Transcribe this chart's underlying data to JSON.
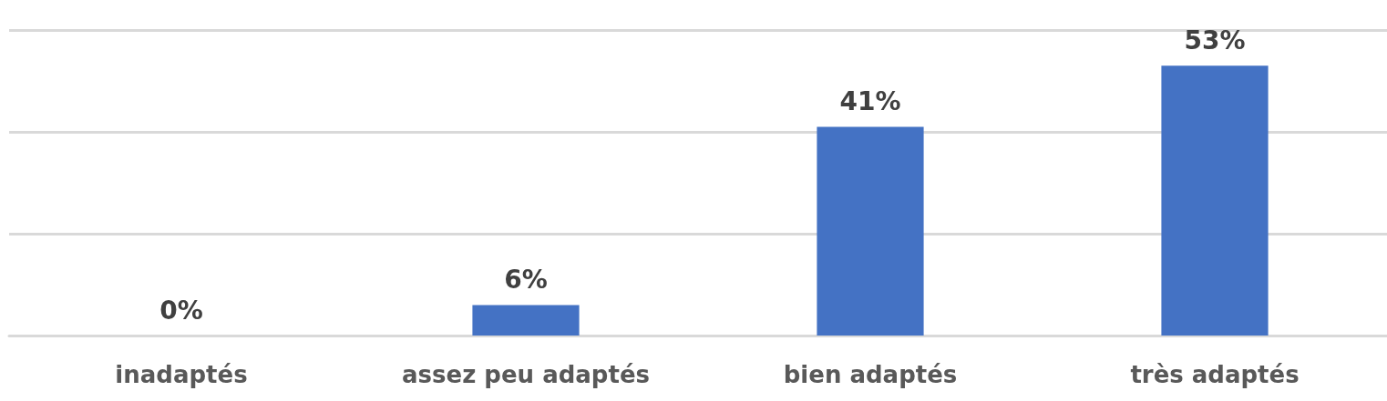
{
  "chart_data": {
    "type": "bar",
    "categories": [
      "inadaptés",
      "assez peu adaptés",
      "bien adaptés",
      "très adaptés"
    ],
    "values": [
      0,
      6,
      41,
      53
    ],
    "value_labels": [
      "0%",
      "6%",
      "41%",
      "53%"
    ],
    "color": "#4472c4",
    "ylim": [
      0,
      60
    ],
    "yticks": [
      {
        "value": 0,
        "label": null
      },
      {
        "value": 20,
        "label": null
      },
      {
        "value": 40,
        "label": null
      },
      {
        "value": 60,
        "label": null
      }
    ],
    "grid": "y",
    "tick_labels": "x"
  }
}
